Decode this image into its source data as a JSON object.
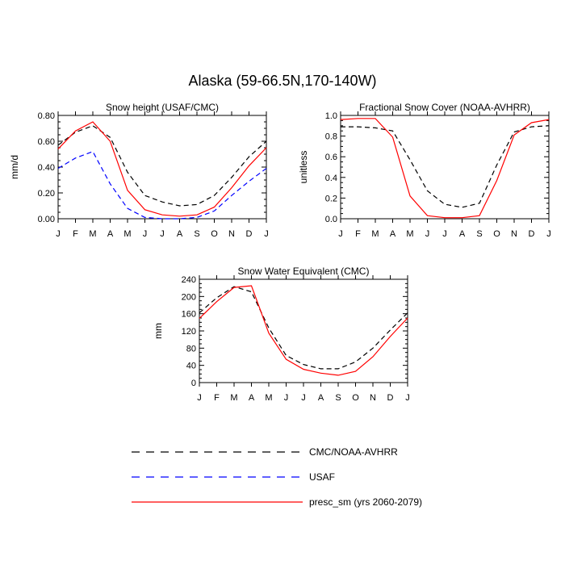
{
  "figure": {
    "title": "Alaska (59-66.5N,170-140W)"
  },
  "legend": [
    {
      "label": "CMC/NOAA-AVHRR",
      "color": "#000000",
      "dash": "dashed"
    },
    {
      "label": "USAF",
      "color": "#0000ff",
      "dash": "dashed"
    },
    {
      "label": "presc_sm (yrs 2060-2079)",
      "color": "#ff0000",
      "dash": "solid"
    }
  ],
  "chart_data": [
    {
      "type": "line",
      "title": "Snow height (USAF/CMC)",
      "ylabel": "mm/d",
      "xlabel": "",
      "categories": [
        "J",
        "F",
        "M",
        "A",
        "M",
        "J",
        "J",
        "A",
        "S",
        "O",
        "N",
        "D",
        "J"
      ],
      "ylim": [
        0,
        0.8
      ],
      "yticks": [
        "0.00",
        "0.20",
        "0.40",
        "0.60",
        "0.80"
      ],
      "series": [
        {
          "name": "CMC/NOAA-AVHRR",
          "color": "#000000",
          "dash": "dashed",
          "values": [
            0.57,
            0.67,
            0.72,
            0.63,
            0.36,
            0.18,
            0.13,
            0.1,
            0.11,
            0.18,
            0.32,
            0.48,
            0.6
          ]
        },
        {
          "name": "USAF",
          "color": "#0000ff",
          "dash": "dashed",
          "values": [
            0.39,
            0.47,
            0.52,
            0.27,
            0.08,
            0.01,
            0.0,
            0.0,
            0.01,
            0.06,
            0.18,
            0.29,
            0.39
          ]
        },
        {
          "name": "presc_sm (yrs 2060-2079)",
          "color": "#ff0000",
          "dash": "solid",
          "values": [
            0.54,
            0.68,
            0.75,
            0.6,
            0.22,
            0.07,
            0.03,
            0.02,
            0.03,
            0.09,
            0.24,
            0.41,
            0.55
          ]
        }
      ]
    },
    {
      "type": "line",
      "title": "Fractional Snow Cover (NOAA-AVHRR)",
      "ylabel": "unitless",
      "xlabel": "",
      "categories": [
        "J",
        "F",
        "M",
        "A",
        "M",
        "J",
        "J",
        "A",
        "S",
        "O",
        "N",
        "D",
        "J"
      ],
      "ylim": [
        0,
        1.0
      ],
      "yticks": [
        "0.0",
        "0.2",
        "0.4",
        "0.6",
        "0.8",
        "1.0"
      ],
      "series": [
        {
          "name": "CMC/NOAA-AVHRR",
          "color": "#000000",
          "dash": "dashed",
          "values": [
            0.89,
            0.89,
            0.88,
            0.85,
            0.57,
            0.27,
            0.14,
            0.11,
            0.15,
            0.52,
            0.84,
            0.89,
            0.9
          ]
        },
        {
          "name": "presc_sm (yrs 2060-2079)",
          "color": "#ff0000",
          "dash": "solid",
          "values": [
            0.96,
            0.97,
            0.97,
            0.79,
            0.22,
            0.03,
            0.01,
            0.01,
            0.03,
            0.37,
            0.81,
            0.93,
            0.96
          ]
        }
      ]
    },
    {
      "type": "line",
      "title": "Snow Water Equivalent (CMC)",
      "ylabel": "mm",
      "xlabel": "",
      "categories": [
        "J",
        "F",
        "M",
        "A",
        "M",
        "J",
        "J",
        "A",
        "S",
        "O",
        "N",
        "D",
        "J"
      ],
      "ylim": [
        0,
        240
      ],
      "yticks": [
        "0",
        "40",
        "80",
        "120",
        "160",
        "200",
        "240"
      ],
      "series": [
        {
          "name": "CMC/NOAA-AVHRR",
          "color": "#000000",
          "dash": "dashed",
          "values": [
            162,
            197,
            223,
            211,
            127,
            63,
            42,
            32,
            32,
            48,
            80,
            122,
            162
          ]
        },
        {
          "name": "presc_sm (yrs 2060-2079)",
          "color": "#ff0000",
          "dash": "solid",
          "values": [
            149,
            188,
            221,
            225,
            115,
            54,
            31,
            22,
            17,
            26,
            60,
            107,
            150
          ]
        }
      ]
    }
  ]
}
